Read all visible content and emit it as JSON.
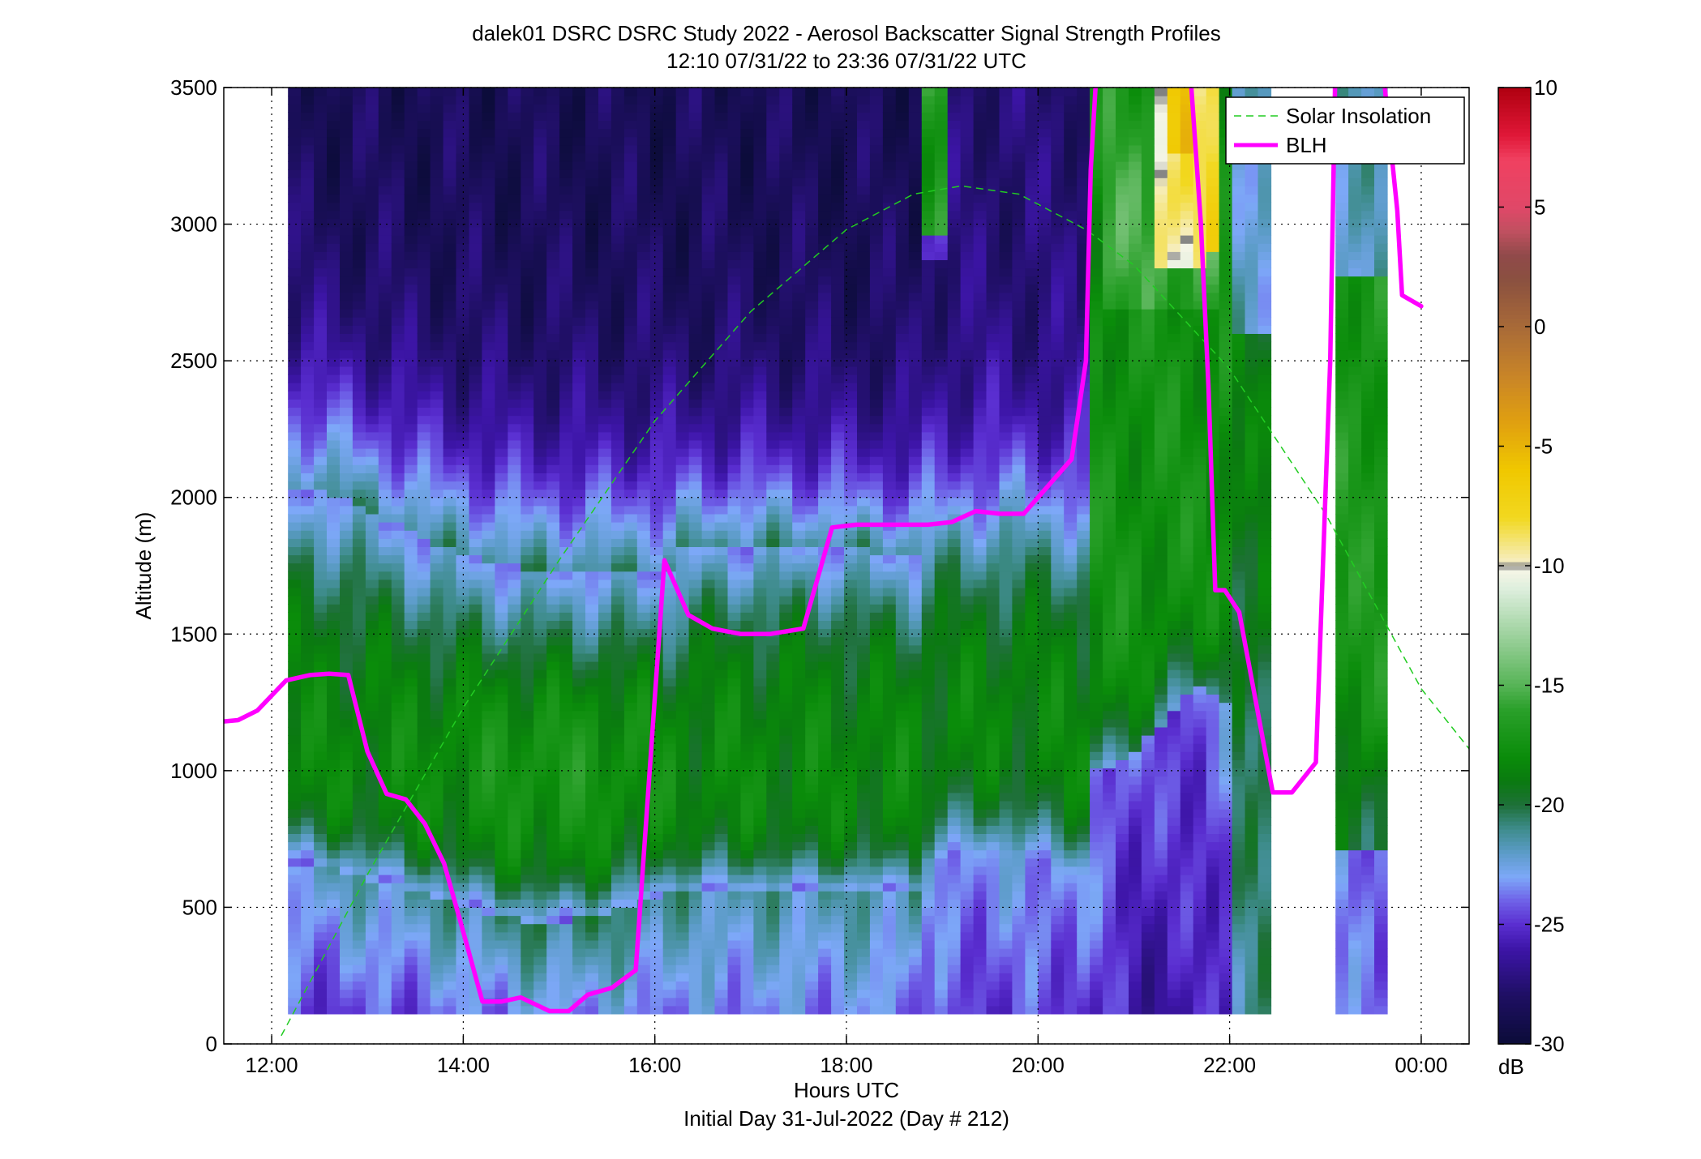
{
  "chart_data": {
    "type": "heatmap",
    "title_line1": "dalek01 DSRC DSRC Study 2022 - Aerosol Backscatter Signal Strength Profiles",
    "title_line2": "12:10 07/31/22 to 23:36 07/31/22  UTC",
    "xlabel": "Hours UTC",
    "xlabel2": "Initial Day 31-Jul-2022 (Day # 212)",
    "ylabel": "Altitude (m)",
    "x_range_hours": [
      11.5,
      24.5
    ],
    "y_range_m": [
      0,
      3500
    ],
    "x_ticks": [
      {
        "hour": 12,
        "label": "12:00"
      },
      {
        "hour": 14,
        "label": "14:00"
      },
      {
        "hour": 16,
        "label": "16:00"
      },
      {
        "hour": 18,
        "label": "18:00"
      },
      {
        "hour": 20,
        "label": "20:00"
      },
      {
        "hour": 22,
        "label": "22:00"
      },
      {
        "hour": 24,
        "label": "00:00"
      }
    ],
    "y_ticks": [
      {
        "value": 0,
        "label": "0"
      },
      {
        "value": 500,
        "label": "500"
      },
      {
        "value": 1000,
        "label": "1000"
      },
      {
        "value": 1500,
        "label": "1500"
      },
      {
        "value": 2000,
        "label": "2000"
      },
      {
        "value": 2500,
        "label": "2500"
      },
      {
        "value": 3000,
        "label": "3000"
      },
      {
        "value": 3500,
        "label": "3500"
      }
    ],
    "grid": "dotted",
    "colorbar": {
      "range": [
        -30,
        10
      ],
      "unit": "dB",
      "ticks": [
        {
          "value": 10,
          "label": "10"
        },
        {
          "value": 5,
          "label": "5"
        },
        {
          "value": 0,
          "label": "0"
        },
        {
          "value": -5,
          "label": "-5"
        },
        {
          "value": -10,
          "label": "-10"
        },
        {
          "value": -15,
          "label": "-15"
        },
        {
          "value": -20,
          "label": "-20"
        },
        {
          "value": -25,
          "label": "-25"
        },
        {
          "value": -30,
          "label": "-30"
        }
      ],
      "stops": [
        {
          "v": -30,
          "c": "#0b0c38"
        },
        {
          "v": -28,
          "c": "#1e0f62"
        },
        {
          "v": -26,
          "c": "#3d15a8"
        },
        {
          "v": -25,
          "c": "#5a2ed0"
        },
        {
          "v": -24,
          "c": "#6f62e8"
        },
        {
          "v": -23,
          "c": "#7da8f8"
        },
        {
          "v": -22,
          "c": "#5c9cc8"
        },
        {
          "v": -21,
          "c": "#3e8c8c"
        },
        {
          "v": -20,
          "c": "#1e7038"
        },
        {
          "v": -19,
          "c": "#0a7a10"
        },
        {
          "v": -18,
          "c": "#0a8c0a"
        },
        {
          "v": -16,
          "c": "#2aa02a"
        },
        {
          "v": -15,
          "c": "#56b456"
        },
        {
          "v": -13,
          "c": "#9ad09a"
        },
        {
          "v": -11,
          "c": "#dceedc"
        },
        {
          "v": -10.2,
          "c": "#f5f5e6"
        },
        {
          "v": -10,
          "c": "#808080"
        },
        {
          "v": -9.8,
          "c": "#f6eec0"
        },
        {
          "v": -8,
          "c": "#f2d820"
        },
        {
          "v": -6,
          "c": "#f0c800"
        },
        {
          "v": -4,
          "c": "#e0a010"
        },
        {
          "v": -2,
          "c": "#c88428"
        },
        {
          "v": 0,
          "c": "#a86a38"
        },
        {
          "v": 2,
          "c": "#8a5040"
        },
        {
          "v": 3,
          "c": "#904a4a"
        },
        {
          "v": 4,
          "c": "#c05060"
        },
        {
          "v": 5,
          "c": "#e04868"
        },
        {
          "v": 7,
          "c": "#f04060"
        },
        {
          "v": 8,
          "c": "#e01838"
        },
        {
          "v": 10,
          "c": "#b00010"
        }
      ]
    },
    "legend": {
      "placement": "top-right",
      "entries": [
        {
          "label": "Solar Insolation",
          "color": "#22cc22",
          "style": "dashed"
        },
        {
          "label": "BLH",
          "color": "#ff00ff",
          "style": "solid"
        }
      ]
    },
    "heatmap_columns_hours": [
      12.17,
      22.43,
      23.0,
      23.55
    ],
    "solar_insolation": {
      "x": [
        12.1,
        13.0,
        14.0,
        15.0,
        16.0,
        17.0,
        18.0,
        18.7,
        19.2,
        19.8,
        20.5,
        21.0,
        22.0,
        23.0,
        24.0,
        24.5
      ],
      "y": [
        30,
        620,
        1230,
        1770,
        2280,
        2680,
        2980,
        3110,
        3140,
        3110,
        2980,
        2850,
        2470,
        1940,
        1300,
        1080
      ]
    },
    "blh": {
      "segments": [
        {
          "x": [
            11.5,
            11.65,
            11.85,
            12.15,
            12.4,
            12.6,
            12.8,
            13.0,
            13.2,
            13.4,
            13.6,
            13.8,
            14.0,
            14.2,
            14.4,
            14.6,
            14.9,
            15.1,
            15.3,
            15.55,
            15.8,
            16.1,
            16.35,
            16.6,
            16.9,
            17.2,
            17.55,
            17.85,
            18.1,
            18.35,
            18.6,
            18.85,
            19.1,
            19.35,
            19.6,
            19.85,
            20.05,
            20.35,
            20.5,
            20.55,
            20.6
          ],
          "y": [
            1180,
            1185,
            1220,
            1330,
            1350,
            1355,
            1350,
            1070,
            915,
            895,
            805,
            660,
            410,
            155,
            155,
            170,
            120,
            120,
            180,
            205,
            270,
            1770,
            1570,
            1520,
            1500,
            1500,
            1520,
            1890,
            1900,
            1900,
            1900,
            1900,
            1910,
            1950,
            1940,
            1940,
            2020,
            2140,
            2500,
            3200,
            3500
          ]
        },
        {
          "x": [
            21.6,
            21.7,
            21.78,
            21.85,
            21.95,
            22.1,
            22.45,
            22.65,
            22.9,
            23.05,
            23.1
          ],
          "y": [
            3500,
            3000,
            2400,
            1660,
            1660,
            1580,
            920,
            920,
            1030,
            2500,
            3500
          ]
        },
        {
          "x": [
            23.62,
            23.75,
            23.8,
            24.0
          ],
          "y": [
            3500,
            3050,
            2740,
            2700
          ]
        }
      ]
    },
    "gaps_hours": [
      [
        22.43,
        23.0
      ]
    ]
  },
  "colors": {
    "blh": "#ff00ff",
    "solar": "#22cc22",
    "background": "#ffffff"
  }
}
